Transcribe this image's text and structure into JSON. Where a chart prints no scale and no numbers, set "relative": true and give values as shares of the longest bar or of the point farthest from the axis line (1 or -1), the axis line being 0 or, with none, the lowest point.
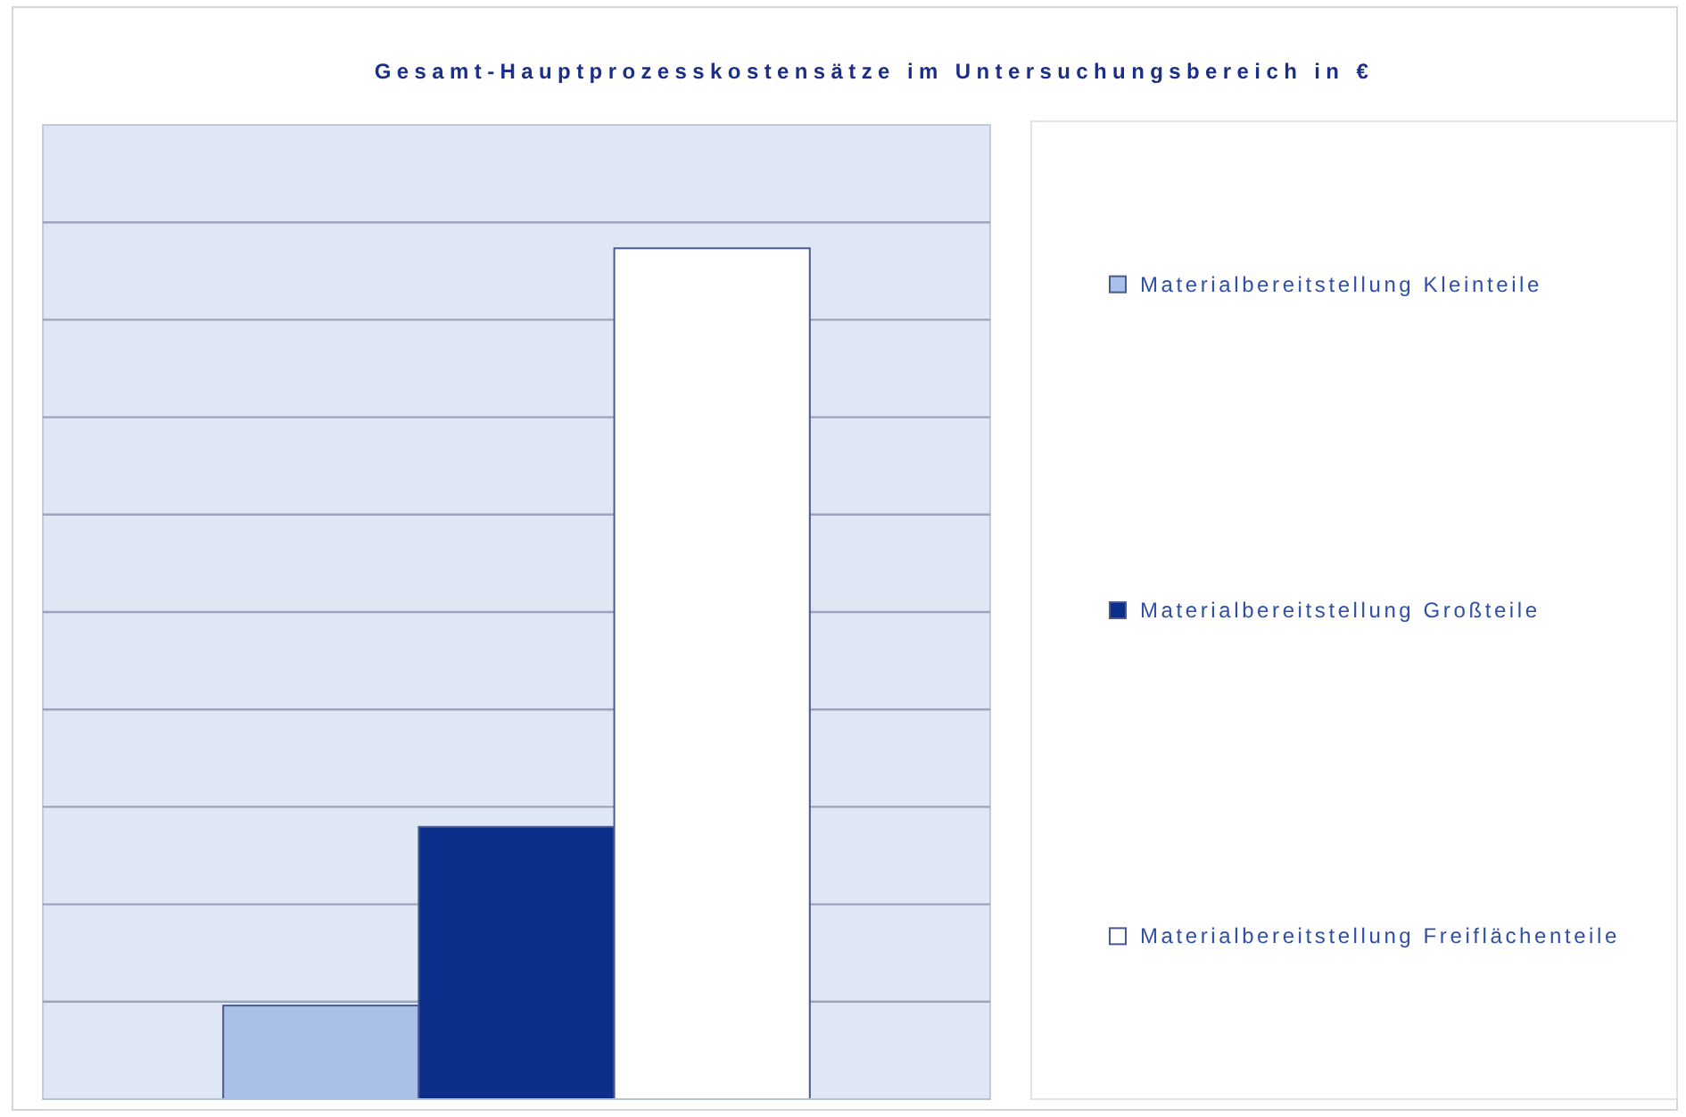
{
  "chart_data": {
    "type": "bar",
    "title": "Gesamt-Hauptprozesskostensätze im Untersuchungsbereich in €",
    "categories": [
      null
    ],
    "relative": true,
    "series": [
      {
        "name": "Materialbereitstellung Kleinteile",
        "color": "#a9c1e8",
        "values": [
          0.11
        ]
      },
      {
        "name": "Materialbereitstellung Großteile",
        "color": "#0d2f8c",
        "values": [
          0.32
        ]
      },
      {
        "name": "Materialbereitstellung Freiflächenteile",
        "color": "#ffffff",
        "values": [
          1
        ]
      }
    ],
    "grid": "y",
    "legend": "right"
  }
}
